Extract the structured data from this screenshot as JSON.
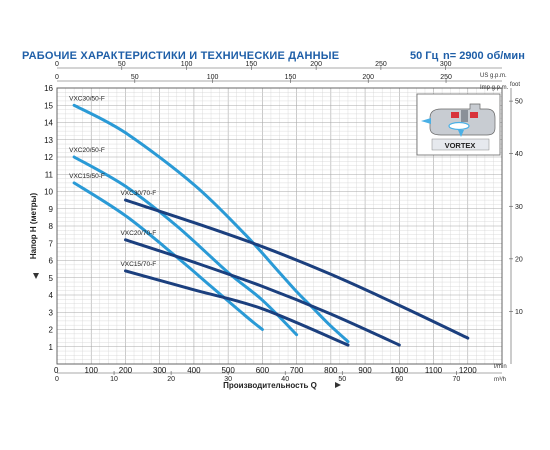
{
  "header": {
    "title": "РАБОЧИЕ ХАРАКТЕРИСТИКИ И ТЕХНИЧЕСКИЕ ДАННЫЕ",
    "frequency": "50 Гц",
    "speed": "n= 2900 об/мин"
  },
  "inset": {
    "label": "VORTEX"
  },
  "chart_data": {
    "type": "line",
    "title": "",
    "xlabel": "Производительность Q",
    "ylabel": "Напор H (метры)",
    "xlim": [
      0,
      1300
    ],
    "ylim": [
      0,
      16
    ],
    "grid": true,
    "x_ticks": [
      100,
      200,
      300,
      400,
      500,
      600,
      700,
      800,
      900,
      1000,
      1100,
      1200
    ],
    "y_ticks": [
      1,
      2,
      3,
      4,
      5,
      6,
      7,
      8,
      9,
      10,
      11,
      12,
      13,
      14,
      15,
      16
    ],
    "x_unit": "l/min",
    "y_unit": "",
    "secondary_axes": {
      "us_gpm": {
        "unit": "US g.p.m.",
        "ticks": [
          50,
          100,
          150,
          200,
          250,
          300
        ],
        "factor_lpm": 3.785
      },
      "imp_gpm": {
        "unit": "Imp g.p.m.",
        "ticks": [
          50,
          100,
          150,
          200,
          250
        ],
        "factor_lpm": 4.546
      },
      "m3h": {
        "unit": "m³/h",
        "ticks": [
          10,
          20,
          30,
          40,
          50,
          60,
          70
        ],
        "factor_lpm": 16.667
      },
      "foot": {
        "unit": "foot",
        "ticks": [
          10,
          20,
          30,
          40,
          50
        ],
        "factor_m": 0.3048
      }
    },
    "series": [
      {
        "name": "VXC30/50-F",
        "color": "#2a9ad6",
        "x": [
          50,
          200,
          400,
          550,
          650,
          700,
          750,
          800,
          850
        ],
        "y": [
          15,
          13.4,
          10.4,
          7.5,
          5.3,
          4.2,
          3.2,
          2.2,
          1.3
        ]
      },
      {
        "name": "VXC20/50-F",
        "color": "#2a9ad6",
        "x": [
          50,
          200,
          350,
          500,
          600,
          700
        ],
        "y": [
          12,
          10.3,
          8,
          5.3,
          3.7,
          1.7
        ]
      },
      {
        "name": "VXC15/50-F",
        "color": "#2a9ad6",
        "x": [
          50,
          200,
          350,
          450,
          550,
          600
        ],
        "y": [
          10.5,
          8.6,
          6.2,
          4.5,
          2.8,
          2
        ]
      },
      {
        "name": "VXC30/70-F",
        "color": "#1b3f7e",
        "x": [
          200,
          400,
          600,
          800,
          1000,
          1200
        ],
        "y": [
          9.5,
          8.2,
          6.8,
          5.2,
          3.4,
          1.5
        ]
      },
      {
        "name": "VXC20/70-F",
        "color": "#1b3f7e",
        "x": [
          200,
          400,
          600,
          800,
          1000
        ],
        "y": [
          7.2,
          5.9,
          4.5,
          2.9,
          1.1
        ]
      },
      {
        "name": "VXC15/70-F",
        "color": "#1b3f7e",
        "x": [
          200,
          400,
          600,
          850
        ],
        "y": [
          5.4,
          4.3,
          3.2,
          1.1
        ]
      }
    ]
  }
}
